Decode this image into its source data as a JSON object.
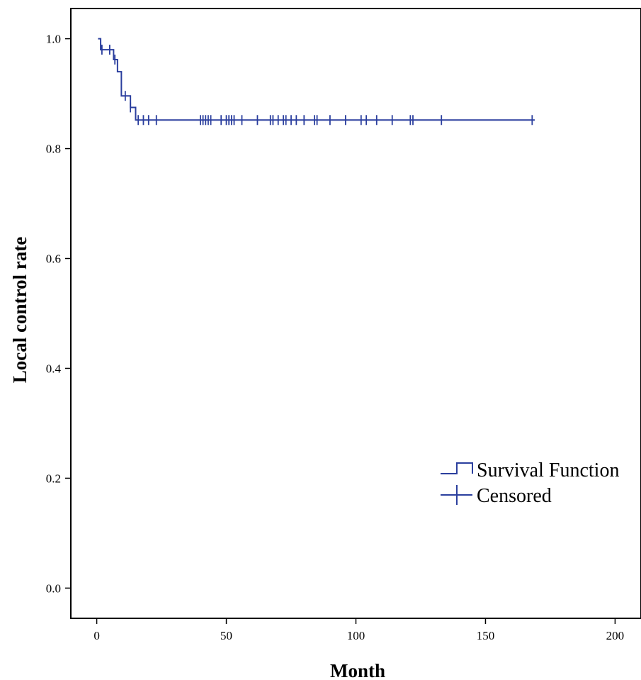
{
  "chart_data": {
    "type": "line",
    "title": "",
    "xlabel": "Month",
    "ylabel": "Local control rate",
    "xlim": [
      -10,
      210
    ],
    "ylim": [
      -0.055,
      1.055
    ],
    "xticks": [
      0,
      50,
      100,
      150,
      200
    ],
    "xtick_labels": [
      "0",
      "50",
      "100",
      "150",
      "200"
    ],
    "yticks": [
      0.0,
      0.2,
      0.4,
      0.6,
      0.8,
      1.0
    ],
    "ytick_labels": [
      "0.0",
      "0.2",
      "0.4",
      "0.6",
      "0.8",
      "1.0"
    ],
    "grid": false,
    "legend": {
      "position": "right",
      "entries": [
        "Survival Function",
        "Censored"
      ]
    },
    "color": "#2b3f9e",
    "series": [
      {
        "name": "Survival Function",
        "x": [
          0.5,
          1.5,
          5.5,
          6.5,
          8.0,
          9.5,
          11.5,
          13.0,
          15.0,
          169.0
        ],
        "y": [
          1.0,
          0.98,
          0.98,
          0.962,
          0.94,
          0.896,
          0.896,
          0.875,
          0.852,
          0.852
        ]
      },
      {
        "name": "Censored",
        "x": [
          2,
          5,
          7,
          11,
          13,
          16,
          18,
          20,
          23,
          40,
          41,
          42,
          43,
          44,
          48,
          50,
          51,
          52,
          53,
          56,
          62,
          67,
          68,
          70,
          72,
          73,
          75,
          77,
          80,
          84,
          85,
          90,
          96,
          102,
          104,
          108,
          114,
          121,
          122,
          133,
          168
        ],
        "y": [
          0.98,
          0.98,
          0.962,
          0.896,
          0.875,
          0.852,
          0.852,
          0.852,
          0.852,
          0.852,
          0.852,
          0.852,
          0.852,
          0.852,
          0.852,
          0.852,
          0.852,
          0.852,
          0.852,
          0.852,
          0.852,
          0.852,
          0.852,
          0.852,
          0.852,
          0.852,
          0.852,
          0.852,
          0.852,
          0.852,
          0.852,
          0.852,
          0.852,
          0.852,
          0.852,
          0.852,
          0.852,
          0.852,
          0.852,
          0.852,
          0.852
        ]
      }
    ]
  }
}
